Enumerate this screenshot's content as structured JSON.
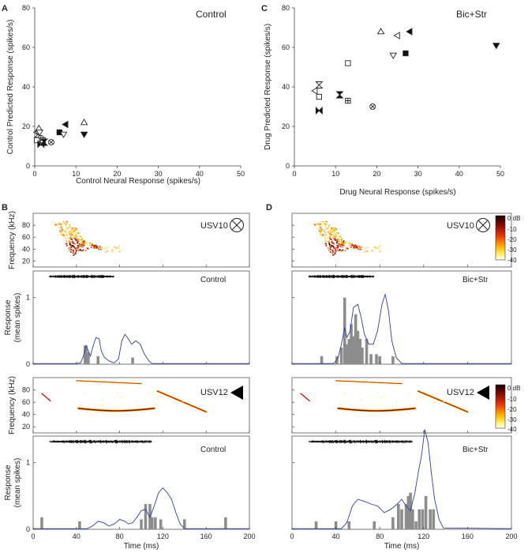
{
  "figure": {
    "panel_letters": [
      "A",
      "B",
      "C",
      "D"
    ],
    "colorbar_labels": [
      "0 dB",
      "-10",
      "-20",
      "-30",
      "-40"
    ],
    "time_axis_label": "Time (ms)",
    "freq_axis_label": "Frequency (kHz)",
    "resp_axis_label": [
      "Response",
      "(mean spikes)"
    ]
  },
  "chart_data": [
    {
      "id": "A",
      "type": "scatter",
      "title": "Control",
      "xlabel": "Control Neural Response (spikes/s)",
      "ylabel": "Control Predicted Response (spikes/s)",
      "xlim": [
        0,
        50
      ],
      "ylim": [
        0,
        80
      ],
      "xticks": [
        "0",
        "10",
        "20",
        "30",
        "40",
        "50"
      ],
      "yticks": [
        "0",
        "20",
        "40",
        "60",
        "80"
      ],
      "points": [
        {
          "x": 0.5,
          "y": 17,
          "marker": "open-triangle-left"
        },
        {
          "x": 1.0,
          "y": 19,
          "marker": "open-triangle-up"
        },
        {
          "x": 0.8,
          "y": 16,
          "marker": "hourglass"
        },
        {
          "x": 1.2,
          "y": 17,
          "marker": "open-triangle-down"
        },
        {
          "x": 1.5,
          "y": 14,
          "marker": "open-circle-plus"
        },
        {
          "x": 0.5,
          "y": 13,
          "marker": "open-square"
        },
        {
          "x": 2.0,
          "y": 13,
          "marker": "open-square-plus"
        },
        {
          "x": 1.5,
          "y": 11,
          "marker": "bowtie"
        },
        {
          "x": 2.3,
          "y": 12,
          "marker": "filled-hourglass"
        },
        {
          "x": 4.0,
          "y": 12,
          "marker": "circle-x"
        },
        {
          "x": 7.5,
          "y": 21,
          "marker": "filled-triangle-left"
        },
        {
          "x": 6.0,
          "y": 17,
          "marker": "filled-square"
        },
        {
          "x": 7.0,
          "y": 16,
          "marker": "open-triangle-down"
        },
        {
          "x": 12.0,
          "y": 22,
          "marker": "open-triangle-up"
        },
        {
          "x": 12.0,
          "y": 16,
          "marker": "filled-triangle-down"
        }
      ]
    },
    {
      "id": "C",
      "type": "scatter",
      "title": "Bic+Str",
      "xlabel": "Drug Neural Response (spikes/s)",
      "ylabel": "Drug Predicted Response (spikes/s)",
      "xlim": [
        0,
        50
      ],
      "ylim": [
        0,
        80
      ],
      "xticks": [
        "0",
        "10",
        "20",
        "30",
        "40",
        "50"
      ],
      "yticks": [
        "0",
        "20",
        "40",
        "60",
        "80"
      ],
      "points": [
        {
          "x": 21,
          "y": 68,
          "marker": "open-triangle-up"
        },
        {
          "x": 25,
          "y": 66,
          "marker": "open-triangle-left"
        },
        {
          "x": 28,
          "y": 68,
          "marker": "filled-triangle-left"
        },
        {
          "x": 24,
          "y": 56,
          "marker": "open-triangle-down"
        },
        {
          "x": 27,
          "y": 57,
          "marker": "filled-square"
        },
        {
          "x": 49,
          "y": 61,
          "marker": "filled-triangle-down"
        },
        {
          "x": 13,
          "y": 52,
          "marker": "open-square"
        },
        {
          "x": 6,
          "y": 41,
          "marker": "hourglass"
        },
        {
          "x": 5,
          "y": 38,
          "marker": "open-triangle-left"
        },
        {
          "x": 6,
          "y": 35,
          "marker": "open-square"
        },
        {
          "x": 11,
          "y": 36,
          "marker": "filled-hourglass"
        },
        {
          "x": 13,
          "y": 33,
          "marker": "open-square-plus"
        },
        {
          "x": 19,
          "y": 30,
          "marker": "circle-x"
        },
        {
          "x": 6,
          "y": 28,
          "marker": "bowtie"
        }
      ]
    },
    {
      "id": "B-USV10",
      "type": "heatmap",
      "title": "USV10",
      "symbol": "circle-x",
      "ylabel": "Frequency (kHz)",
      "xlim": [
        0,
        200
      ],
      "ylim": [
        10,
        100
      ],
      "yticks": [
        "20",
        "40",
        "60",
        "80"
      ]
    },
    {
      "id": "B-USV10-response",
      "type": "bar",
      "title": "Control",
      "ylabel": "Response (mean spikes)",
      "xlim": [
        0,
        200
      ],
      "ylim": [
        0,
        1.4
      ],
      "yticks": [
        "0",
        "1"
      ],
      "bars": [
        [
          48,
          0.28
        ],
        [
          49,
          0.28
        ],
        [
          51,
          0.18
        ],
        [
          60,
          0.12
        ],
        [
          92,
          0.1
        ]
      ],
      "curve": [
        [
          0,
          0.01
        ],
        [
          40,
          0.01
        ],
        [
          44,
          0.02
        ],
        [
          47,
          0.15
        ],
        [
          49,
          0.28
        ],
        [
          51,
          0.2
        ],
        [
          53,
          0.12
        ],
        [
          55,
          0.25
        ],
        [
          58,
          0.4
        ],
        [
          61,
          0.38
        ],
        [
          63,
          0.2
        ],
        [
          66,
          0.1
        ],
        [
          70,
          0.05
        ],
        [
          75,
          0.02
        ],
        [
          79,
          0.08
        ],
        [
          82,
          0.35
        ],
        [
          85,
          0.45
        ],
        [
          88,
          0.38
        ],
        [
          91,
          0.3
        ],
        [
          95,
          0.35
        ],
        [
          99,
          0.3
        ],
        [
          103,
          0.15
        ],
        [
          107,
          0.05
        ],
        [
          110,
          0.01
        ],
        [
          200,
          0.01
        ]
      ],
      "envelope_range": [
        15,
        75
      ]
    },
    {
      "id": "B-USV12",
      "type": "heatmap",
      "title": "USV12",
      "symbol": "filled-triangle-left",
      "ylabel": "Frequency (kHz)",
      "xlim": [
        0,
        200
      ],
      "ylim": [
        10,
        100
      ],
      "yticks": [
        "20",
        "40",
        "60",
        "80"
      ]
    },
    {
      "id": "B-USV12-response",
      "type": "bar",
      "title": "Control",
      "xlabel": "Time (ms)",
      "ylabel": "Response (mean spikes)",
      "xlim": [
        0,
        200
      ],
      "ylim": [
        0,
        1.4
      ],
      "xticks": [
        "0",
        "40",
        "80",
        "120",
        "160",
        "200"
      ],
      "yticks": [
        "0",
        "1"
      ],
      "bars": [
        [
          8,
          0.18
        ],
        [
          43,
          0.12
        ],
        [
          100,
          0.15
        ],
        [
          104,
          0.38
        ],
        [
          108,
          0.38
        ],
        [
          110,
          0.18
        ],
        [
          113,
          0.18
        ],
        [
          118,
          0.15
        ],
        [
          140,
          0.15
        ],
        [
          178,
          0.18
        ]
      ],
      "curve": [
        [
          0,
          0.01
        ],
        [
          50,
          0.01
        ],
        [
          55,
          0.05
        ],
        [
          60,
          0.12
        ],
        [
          65,
          0.1
        ],
        [
          70,
          0.05
        ],
        [
          75,
          0.08
        ],
        [
          80,
          0.15
        ],
        [
          85,
          0.12
        ],
        [
          88,
          0.08
        ],
        [
          92,
          0.1
        ],
        [
          96,
          0.18
        ],
        [
          100,
          0.28
        ],
        [
          104,
          0.3
        ],
        [
          108,
          0.18
        ],
        [
          112,
          0.35
        ],
        [
          116,
          0.55
        ],
        [
          120,
          0.62
        ],
        [
          124,
          0.55
        ],
        [
          128,
          0.45
        ],
        [
          132,
          0.25
        ],
        [
          136,
          0.08
        ],
        [
          140,
          0.01
        ],
        [
          200,
          0.01
        ]
      ],
      "envelope_range": [
        15,
        110
      ]
    },
    {
      "id": "D-USV10",
      "type": "heatmap",
      "title": "USV10",
      "symbol": "circle-x",
      "xlim": [
        0,
        200
      ],
      "ylim": [
        10,
        100
      ],
      "colorbar": [
        "0 dB",
        "-10",
        "-20",
        "-30",
        "-40"
      ]
    },
    {
      "id": "D-USV10-response",
      "type": "bar",
      "title": "Bic+Str",
      "xlim": [
        0,
        200
      ],
      "ylim": [
        0,
        1.4
      ],
      "bars": [
        [
          27,
          0.12
        ],
        [
          41,
          0.12
        ],
        [
          45,
          0.25
        ],
        [
          48,
          1.0
        ],
        [
          50,
          0.3
        ],
        [
          52,
          0.38
        ],
        [
          54,
          0.6
        ],
        [
          56,
          0.42
        ],
        [
          58,
          0.75
        ],
        [
          60,
          0.5
        ],
        [
          62,
          0.38
        ],
        [
          64,
          0.25
        ],
        [
          68,
          0.38
        ],
        [
          72,
          0.15
        ],
        [
          77,
          0.15
        ],
        [
          80,
          0.12
        ],
        [
          92,
          0.12
        ]
      ],
      "curve": [
        [
          0,
          0.01
        ],
        [
          38,
          0.01
        ],
        [
          42,
          0.1
        ],
        [
          45,
          0.3
        ],
        [
          48,
          0.55
        ],
        [
          50,
          0.4
        ],
        [
          53,
          0.5
        ],
        [
          56,
          0.85
        ],
        [
          60,
          0.9
        ],
        [
          63,
          0.7
        ],
        [
          66,
          0.45
        ],
        [
          70,
          0.3
        ],
        [
          74,
          0.3
        ],
        [
          78,
          0.5
        ],
        [
          82,
          0.9
        ],
        [
          85,
          1.05
        ],
        [
          88,
          0.8
        ],
        [
          91,
          0.35
        ],
        [
          95,
          0.1
        ],
        [
          100,
          0.01
        ],
        [
          200,
          0.01
        ]
      ],
      "envelope_range": [
        15,
        75
      ]
    },
    {
      "id": "D-USV12",
      "type": "heatmap",
      "title": "USV12",
      "symbol": "filled-triangle-left",
      "xlim": [
        0,
        200
      ],
      "ylim": [
        10,
        100
      ],
      "colorbar": [
        "0 dB",
        "-10",
        "-20",
        "-30",
        "-40"
      ]
    },
    {
      "id": "D-USV12-response",
      "type": "bar",
      "title": "Bic+Str",
      "xlabel": "Time (ms)",
      "xlim": [
        0,
        200
      ],
      "ylim": [
        0,
        1.4
      ],
      "xticks": [
        "0",
        "40",
        "80",
        "120",
        "160",
        "200"
      ],
      "bars": [
        [
          22,
          0.12
        ],
        [
          40,
          0.12
        ],
        [
          52,
          0.12
        ],
        [
          75,
          0.12
        ],
        [
          92,
          0.18
        ],
        [
          97,
          0.38
        ],
        [
          100,
          0.3
        ],
        [
          104,
          0.38
        ],
        [
          106,
          0.5
        ],
        [
          108,
          0.55
        ],
        [
          110,
          0.3
        ],
        [
          113,
          0.12
        ],
        [
          116,
          0.3
        ],
        [
          119,
          0.3
        ],
        [
          122,
          0.5
        ],
        [
          126,
          0.3
        ],
        [
          129,
          0.3
        ]
      ],
      "curve": [
        [
          0,
          0.01
        ],
        [
          45,
          0.01
        ],
        [
          50,
          0.1
        ],
        [
          55,
          0.35
        ],
        [
          60,
          0.45
        ],
        [
          66,
          0.42
        ],
        [
          72,
          0.38
        ],
        [
          78,
          0.35
        ],
        [
          84,
          0.25
        ],
        [
          90,
          0.3
        ],
        [
          96,
          0.38
        ],
        [
          100,
          0.45
        ],
        [
          104,
          0.35
        ],
        [
          108,
          0.28
        ],
        [
          112,
          0.55
        ],
        [
          115,
          0.85
        ],
        [
          118,
          1.1
        ],
        [
          121,
          1.5
        ],
        [
          124,
          1.3
        ],
        [
          127,
          0.85
        ],
        [
          130,
          0.45
        ],
        [
          134,
          0.15
        ],
        [
          138,
          0.02
        ],
        [
          200,
          0.01
        ]
      ],
      "envelope_range": [
        15,
        110
      ]
    }
  ]
}
